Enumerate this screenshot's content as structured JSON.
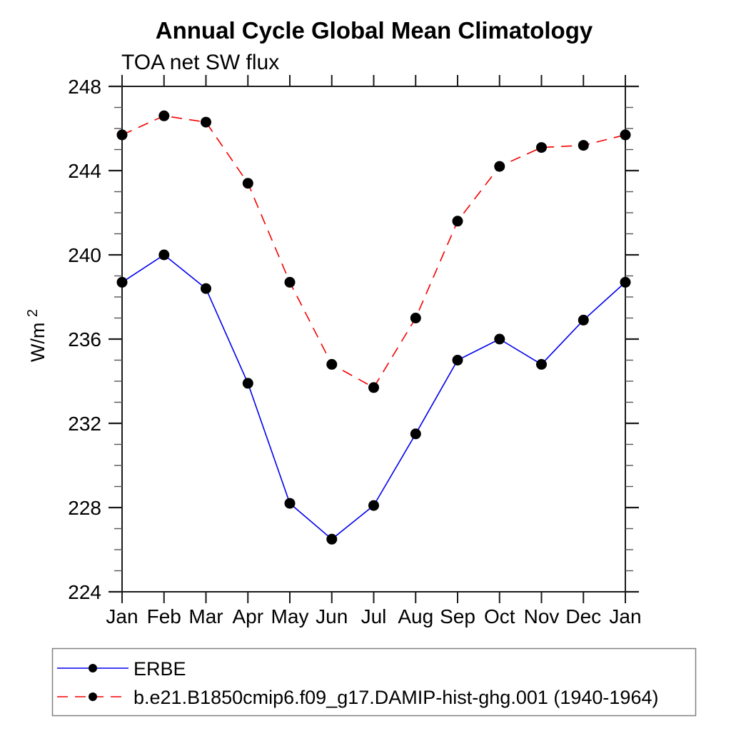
{
  "page": {
    "background_color": "#ffffff",
    "text_color": "#000000"
  },
  "chart_data": {
    "type": "line",
    "title": "Annual Cycle Global Mean Climatology",
    "subtitle": "TOA net SW flux",
    "ylabel_base": "W/m",
    "ylabel_exponent": "2",
    "xlabel": "",
    "categories": [
      "Jan",
      "Feb",
      "Mar",
      "Apr",
      "May",
      "Jun",
      "Jul",
      "Aug",
      "Sep",
      "Oct",
      "Nov",
      "Dec",
      "Jan"
    ],
    "ylim": [
      224,
      248
    ],
    "yticks_major": [
      224,
      228,
      232,
      236,
      240,
      244,
      248
    ],
    "ytick_labels": [
      "224",
      "228",
      "232",
      "236",
      "240",
      "244",
      "248"
    ],
    "ytick_minor_step": 1,
    "grid": "off",
    "axis_color": "#1a1a1a",
    "minor_tick_color": "#555555",
    "marker_color": "#000000",
    "legend_position": "bottom-left-box",
    "legend_border_color": "#808080",
    "series": [
      {
        "name": "ERBE",
        "color": "#0000ee",
        "line_style": "solid",
        "marker": "circle",
        "values": [
          238.7,
          240.0,
          238.4,
          233.9,
          228.2,
          226.5,
          228.1,
          231.5,
          235.0,
          236.0,
          234.8,
          236.9,
          238.7
        ]
      },
      {
        "name": "b.e21.B1850cmip6.f09_g17.DAMIP-hist-ghg.001 (1940-1964)",
        "color": "#f40000",
        "line_style": "dashed",
        "marker": "circle",
        "values": [
          245.7,
          246.6,
          246.3,
          243.4,
          238.7,
          234.8,
          233.7,
          237.0,
          241.6,
          244.2,
          245.1,
          245.2,
          245.7
        ]
      }
    ]
  }
}
